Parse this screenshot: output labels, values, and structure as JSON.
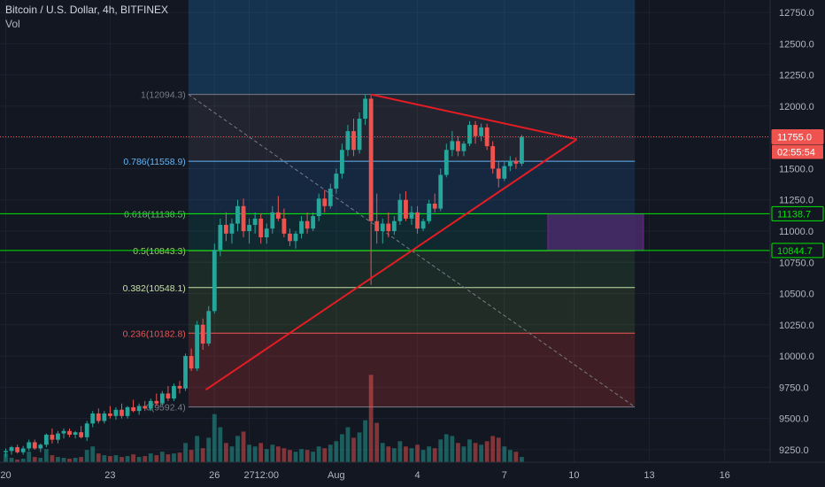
{
  "header": {
    "symbol_title": "Bitcoin / U.S. Dollar, 4h, BITFINEX",
    "indicator": "Vol"
  },
  "colors": {
    "background": "#131722",
    "grid": "#1e2230",
    "up": "#26a69a",
    "down": "#ef5350",
    "trendline": "#e51c23",
    "price_line": "#ef5350",
    "level_line": "#00e600",
    "box": "#4a2a6a"
  },
  "chart_data": {
    "type": "candlestick",
    "title": "Bitcoin / U.S. Dollar, 4h, BITFINEX",
    "ylim": [
      9150,
      12850
    ],
    "grid": true,
    "y_ticks": [
      12750,
      12500,
      12250,
      12000,
      11750,
      11500,
      11250,
      11000,
      10750,
      10500,
      10250,
      10000,
      9750,
      9500,
      9250
    ],
    "y_tick_labels": [
      "12750.0",
      "12500.0",
      "12250.0",
      "12000.0",
      "11750.0",
      "11500.0",
      "11250.0",
      "11000.0",
      "10750.0",
      "10500.0",
      "10250.0",
      "10000.0",
      "9750.0",
      "9500.0",
      "9250.0"
    ],
    "x_ticks": [
      {
        "label": "20",
        "i": 0
      },
      {
        "label": "23",
        "i": 18
      },
      {
        "label": "26",
        "i": 36
      },
      {
        "label": "27",
        "i": 42
      },
      {
        "label": "12:00",
        "i": 45
      },
      {
        "label": "Aug",
        "i": 57
      },
      {
        "label": "4",
        "i": 71
      },
      {
        "label": "7",
        "i": 86
      },
      {
        "label": "10",
        "i": 98
      },
      {
        "label": "13",
        "i": 111
      },
      {
        "label": "16",
        "i": 124
      }
    ],
    "candles": [
      [
        9230,
        9260,
        9190,
        9240
      ],
      [
        9240,
        9280,
        9210,
        9270
      ],
      [
        9270,
        9290,
        9220,
        9230
      ],
      [
        9230,
        9280,
        9210,
        9260
      ],
      [
        9260,
        9330,
        9240,
        9310
      ],
      [
        9310,
        9330,
        9250,
        9260
      ],
      [
        9260,
        9300,
        9230,
        9290
      ],
      [
        9290,
        9380,
        9270,
        9370
      ],
      [
        9370,
        9420,
        9300,
        9330
      ],
      [
        9330,
        9400,
        9300,
        9380
      ],
      [
        9380,
        9420,
        9340,
        9400
      ],
      [
        9400,
        9420,
        9350,
        9370
      ],
      [
        9370,
        9400,
        9340,
        9390
      ],
      [
        9390,
        9440,
        9340,
        9350
      ],
      [
        9350,
        9480,
        9320,
        9460
      ],
      [
        9460,
        9560,
        9430,
        9540
      ],
      [
        9540,
        9580,
        9460,
        9480
      ],
      [
        9480,
        9560,
        9460,
        9540
      ],
      [
        9540,
        9600,
        9500,
        9520
      ],
      [
        9520,
        9590,
        9490,
        9570
      ],
      [
        9570,
        9620,
        9500,
        9520
      ],
      [
        9520,
        9600,
        9500,
        9590
      ],
      [
        9590,
        9650,
        9550,
        9560
      ],
      [
        9560,
        9620,
        9530,
        9600
      ],
      [
        9600,
        9640,
        9560,
        9580
      ],
      [
        9580,
        9660,
        9560,
        9640
      ],
      [
        9640,
        9700,
        9600,
        9620
      ],
      [
        9620,
        9720,
        9600,
        9700
      ],
      [
        9700,
        9760,
        9640,
        9660
      ],
      [
        9660,
        9780,
        9640,
        9760
      ],
      [
        9760,
        9800,
        9700,
        9740
      ],
      [
        9740,
        10020,
        9720,
        10000
      ],
      [
        10000,
        10060,
        9880,
        9900
      ],
      [
        9900,
        10280,
        9880,
        10250
      ],
      [
        10250,
        10300,
        10050,
        10100
      ],
      [
        10100,
        10400,
        10080,
        10360
      ],
      [
        10360,
        10900,
        10340,
        10850
      ],
      [
        10850,
        11100,
        10800,
        11050
      ],
      [
        11050,
        11150,
        10920,
        10980
      ],
      [
        10980,
        11100,
        10900,
        11060
      ],
      [
        11060,
        11250,
        11000,
        11200
      ],
      [
        11200,
        11260,
        10950,
        11000
      ],
      [
        11000,
        11100,
        10900,
        11050
      ],
      [
        11050,
        11150,
        10980,
        11100
      ],
      [
        11100,
        11140,
        10900,
        10950
      ],
      [
        10950,
        11060,
        10900,
        11020
      ],
      [
        11020,
        11200,
        10980,
        11150
      ],
      [
        11150,
        11280,
        11080,
        11100
      ],
      [
        11100,
        11180,
        10950,
        10980
      ],
      [
        10980,
        11020,
        10880,
        10920
      ],
      [
        10920,
        11000,
        10860,
        10980
      ],
      [
        10980,
        11120,
        10940,
        11080
      ],
      [
        11080,
        11150,
        10980,
        11020
      ],
      [
        11020,
        11150,
        11000,
        11120
      ],
      [
        11120,
        11300,
        11080,
        11260
      ],
      [
        11260,
        11330,
        11150,
        11200
      ],
      [
        11200,
        11380,
        11180,
        11340
      ],
      [
        11340,
        11500,
        11300,
        11460
      ],
      [
        11460,
        11700,
        11420,
        11650
      ],
      [
        11650,
        11850,
        11600,
        11800
      ],
      [
        11800,
        11900,
        11600,
        11650
      ],
      [
        11650,
        11950,
        11620,
        11900
      ],
      [
        11900,
        12094,
        11850,
        12060
      ],
      [
        12060,
        12094,
        10570,
        11080
      ],
      [
        11080,
        11300,
        10900,
        11000
      ],
      [
        11000,
        11100,
        10900,
        11060
      ],
      [
        11060,
        11150,
        10950,
        11000
      ],
      [
        11000,
        11120,
        10970,
        11080
      ],
      [
        11080,
        11300,
        11050,
        11250
      ],
      [
        11250,
        11320,
        11080,
        11100
      ],
      [
        11100,
        11200,
        11050,
        11150
      ],
      [
        11150,
        11200,
        10980,
        11020
      ],
      [
        11020,
        11100,
        11000,
        11080
      ],
      [
        11080,
        11250,
        11060,
        11220
      ],
      [
        11220,
        11300,
        11150,
        11180
      ],
      [
        11180,
        11500,
        11160,
        11450
      ],
      [
        11450,
        11700,
        11430,
        11650
      ],
      [
        11650,
        11800,
        11600,
        11720
      ],
      [
        11720,
        11760,
        11600,
        11640
      ],
      [
        11640,
        11720,
        11600,
        11700
      ],
      [
        11700,
        11880,
        11680,
        11850
      ],
      [
        11850,
        11880,
        11700,
        11760
      ],
      [
        11760,
        11860,
        11720,
        11830
      ],
      [
        11830,
        11860,
        11650,
        11680
      ],
      [
        11680,
        11720,
        11460,
        11500
      ],
      [
        11500,
        11560,
        11350,
        11420
      ],
      [
        11420,
        11560,
        11400,
        11520
      ],
      [
        11520,
        11600,
        11480,
        11560
      ],
      [
        11560,
        11590,
        11500,
        11540
      ],
      [
        11540,
        11770,
        11520,
        11755
      ]
    ],
    "volumes": [
      0.1,
      0.05,
      0.03,
      0.04,
      0.12,
      0.06,
      0.05,
      0.15,
      0.08,
      0.06,
      0.05,
      0.04,
      0.05,
      0.06,
      0.14,
      0.18,
      0.1,
      0.08,
      0.07,
      0.08,
      0.06,
      0.07,
      0.09,
      0.06,
      0.07,
      0.1,
      0.08,
      0.12,
      0.09,
      0.1,
      0.11,
      0.22,
      0.14,
      0.3,
      0.16,
      0.28,
      0.55,
      0.4,
      0.22,
      0.18,
      0.3,
      0.35,
      0.2,
      0.18,
      0.22,
      0.15,
      0.2,
      0.18,
      0.16,
      0.14,
      0.12,
      0.15,
      0.14,
      0.12,
      0.18,
      0.16,
      0.2,
      0.24,
      0.32,
      0.4,
      0.28,
      0.34,
      0.48,
      1.0,
      0.45,
      0.22,
      0.18,
      0.16,
      0.24,
      0.18,
      0.16,
      0.2,
      0.14,
      0.18,
      0.16,
      0.26,
      0.32,
      0.3,
      0.22,
      0.18,
      0.26,
      0.22,
      0.2,
      0.24,
      0.3,
      0.28,
      0.18,
      0.14,
      0.12,
      0.06
    ],
    "vol_max_price_span": 700,
    "fib": [
      {
        "label": "1(12094.3)",
        "value": 12094.3,
        "color": "#787b86",
        "fill": "rgba(120,123,134,0.15)"
      },
      {
        "label": "0.786(11558.9)",
        "value": 11558.9,
        "color": "#64b5f6",
        "fill": "rgba(33,150,243,0.14)"
      },
      {
        "label": "0.618(11138.5)",
        "value": 11138.5,
        "color": "#66bb6a",
        "fill": "rgba(0,150,136,0.14)"
      },
      {
        "label": "0.5(10843.3)",
        "value": 10843.3,
        "color": "#9ccc65",
        "fill": "rgba(76,175,80,0.14)"
      },
      {
        "label": "0.382(10548.1)",
        "value": 10548.1,
        "color": "#c5e1a5",
        "fill": "rgba(124,179,66,0.14)"
      },
      {
        "label": "0.236(10182.8)",
        "value": 10182.8,
        "color": "#ef5350",
        "fill": "rgba(229,57,53,0.22)"
      },
      {
        "label": "0(9592.4)",
        "value": 9592.4,
        "color": "#787b86",
        "fill": null
      }
    ],
    "fib_top_fill": {
      "from": 12094.3,
      "to": 12850,
      "fill": "rgba(33,150,243,0.22)"
    },
    "current_price": {
      "value": 11755.0,
      "label": "11755.0",
      "countdown": "02:55:54"
    },
    "levels": [
      {
        "value": 11138.7,
        "label": "11138.7"
      },
      {
        "value": 10844.7,
        "label": "10844.7"
      }
    ],
    "triangle": {
      "apex_i": 98.5,
      "apex_price": 11735,
      "top_start_i": 63,
      "top_start_price": 12094,
      "bottom_start_i": 34.5,
      "bottom_start_price": 9730
    },
    "box_range": {
      "from_i": 93.5,
      "to_i": 110,
      "low": 10844,
      "high": 11138
    }
  }
}
